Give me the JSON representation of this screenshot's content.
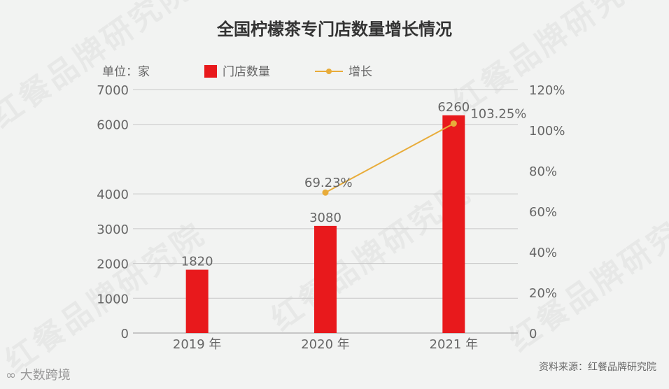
{
  "chart_data": {
    "type": "bar",
    "title": "全国柠檬茶专门店数量增长情况",
    "unit_label": "单位：家",
    "categories": [
      "2019 年",
      "2020 年",
      "2021 年"
    ],
    "series": [
      {
        "name": "门店数量",
        "type": "bar",
        "axis": "left",
        "color": "#e8191c",
        "values": [
          1820,
          3080,
          6260
        ],
        "labels": [
          "1820",
          "3080",
          "6260"
        ]
      },
      {
        "name": "增长",
        "type": "line",
        "axis": "right",
        "color": "#e8ac3a",
        "values": [
          null,
          69.23,
          103.25
        ],
        "labels": [
          "",
          "69.23%",
          "103.25%"
        ]
      }
    ],
    "y_left": {
      "min": 0,
      "max": 7000,
      "ticks": [
        "0",
        "1000",
        "2000",
        "3000",
        "4000",
        "6000",
        "7000"
      ],
      "tick_values": [
        0,
        1000,
        2000,
        3000,
        4000,
        6000,
        7000
      ]
    },
    "y_right": {
      "min": 0,
      "max": 120,
      "ticks": [
        "0",
        "20%",
        "40%",
        "60%",
        "80%",
        "100%",
        "120%"
      ],
      "tick_values": [
        0,
        20,
        40,
        60,
        80,
        100,
        120
      ]
    },
    "source": "资料来源：红餐品牌研究院"
  },
  "watermark_text": "红餐品牌研究院",
  "brand_text": "大数跨境",
  "brand_icon": "infinity-logo-icon"
}
